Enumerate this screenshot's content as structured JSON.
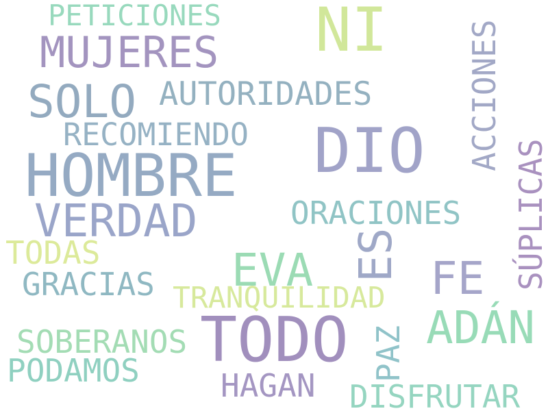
{
  "words": {
    "ni": {
      "text": "NI",
      "color": "#d1e79a"
    },
    "peticiones": {
      "text": "PETICIONES",
      "color": "#98d9bd"
    },
    "mujeres": {
      "text": "MUJERES",
      "color": "#a394bf"
    },
    "solo": {
      "text": "SOLO",
      "color": "#93aabf"
    },
    "autoridades": {
      "text": "AUTORIDADES",
      "color": "#94b1c0"
    },
    "acciones": {
      "text": "ACCIONES",
      "color": "#a2a8c6"
    },
    "recomiendo": {
      "text": "RECOMIENDO",
      "color": "#96b2c4"
    },
    "dio": {
      "text": "DIO",
      "color": "#a1a3c8"
    },
    "hombre": {
      "text": "HOMBRE",
      "color": "#95aac3"
    },
    "suplicas": {
      "text": "SÚPLICAS",
      "color": "#a991bf"
    },
    "verdad": {
      "text": "VERDAD",
      "color": "#9aa5c9"
    },
    "oraciones": {
      "text": "ORACIONES",
      "color": "#90c4c5"
    },
    "todas": {
      "text": "TODAS",
      "color": "#dcea9a"
    },
    "es": {
      "text": "ES",
      "color": "#9fa8c7"
    },
    "eva": {
      "text": "EVA",
      "color": "#9bdbb4"
    },
    "fe": {
      "text": "FE",
      "color": "#a5a5c9"
    },
    "gracias": {
      "text": "GRACIAS",
      "color": "#8fb8c2"
    },
    "tranquilidad": {
      "text": "TRANQUILIDAD",
      "color": "#d7e99c"
    },
    "adan": {
      "text": "ADÁN",
      "color": "#98dbb7"
    },
    "todo": {
      "text": "TODO",
      "color": "#a18fbd"
    },
    "soberanos": {
      "text": "SOBERANOS",
      "color": "#a3dcb4"
    },
    "paz": {
      "text": "PAZ",
      "color": "#90c3c9"
    },
    "podamos": {
      "text": "PODAMOS",
      "color": "#8fd0c0"
    },
    "hagan": {
      "text": "HAGAN",
      "color": "#a496c2"
    },
    "disfrutar": {
      "text": "DISFRUTAR",
      "color": "#95d5c0"
    }
  }
}
